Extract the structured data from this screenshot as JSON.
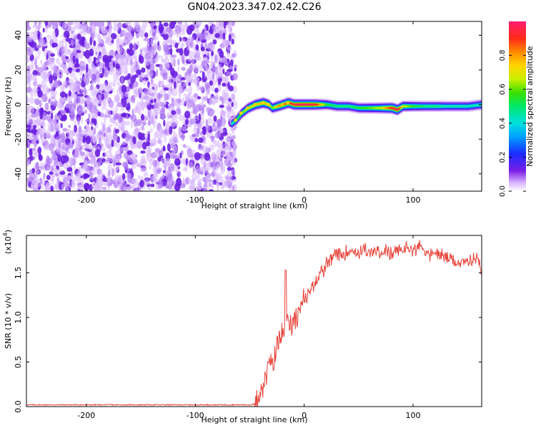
{
  "title": "GN04.2023.347.02.42.C26",
  "colors": {
    "snr_line": "#e8433a",
    "noise": "#7a2ef0",
    "axis": "#000000"
  },
  "colorbar": {
    "label": "Normalized spectral amplitude",
    "ticks": [
      "0.0",
      "0.2",
      "0.4",
      "0.6",
      "0.8"
    ],
    "tick_values": [
      0.0,
      0.2,
      0.4,
      0.6,
      0.8
    ],
    "range": [
      0,
      1
    ]
  },
  "chart_data": [
    {
      "type": "heatmap",
      "title": "GN04.2023.347.02.42.C26",
      "xlabel": "Height of straight line (km)",
      "ylabel": "Frequency (Hz)",
      "xlim": [
        -255,
        163
      ],
      "ylim": [
        -50,
        48
      ],
      "x_ticks": [
        "-200",
        "-100",
        "0",
        "100"
      ],
      "x_tick_values": [
        -200,
        -100,
        0,
        100
      ],
      "y_ticks": [
        "-40",
        "-20",
        "0",
        "20",
        "40"
      ],
      "y_tick_values": [
        -40,
        -20,
        0,
        20,
        40
      ],
      "noise_region_x": [
        -255,
        -63
      ],
      "ridge": {
        "x": [
          -67,
          -63,
          -58,
          -52,
          -45,
          -38,
          -33,
          -30,
          -25,
          -20,
          -15,
          -10,
          -5,
          0,
          10,
          20,
          30,
          40,
          50,
          60,
          70,
          80,
          85,
          90,
          100,
          110,
          120,
          130,
          140,
          150,
          163
        ],
        "frequency": [
          -11,
          -9,
          -5,
          -2,
          0,
          1,
          0,
          -2,
          -1,
          0,
          1,
          0,
          0,
          0,
          0,
          0,
          -1,
          -1,
          -2,
          -2,
          -2,
          -2,
          -3,
          -1,
          -1,
          -1,
          -1,
          -1,
          -1,
          -1,
          0
        ],
        "amplitude": [
          0.45,
          0.5,
          0.6,
          0.7,
          0.75,
          0.8,
          0.7,
          0.6,
          0.8,
          0.85,
          0.9,
          0.95,
          1.0,
          1.0,
          0.95,
          0.55,
          0.5,
          0.5,
          0.55,
          0.6,
          0.7,
          0.95,
          1.0,
          0.7,
          0.55,
          0.5,
          0.5,
          0.45,
          0.45,
          0.45,
          0.45
        ]
      }
    },
    {
      "type": "line",
      "xlabel": "Height of straight line (km)",
      "ylabel": "SNR (10 * v/v)",
      "yunit": "(x10",
      "yunit_exp": "4",
      "yunit_close": ")",
      "xlim": [
        -255,
        163
      ],
      "ylim": [
        0,
        1.92
      ],
      "x_ticks": [
        "-200",
        "-100",
        "0",
        "100"
      ],
      "x_tick_values": [
        -200,
        -100,
        0,
        100
      ],
      "y_ticks": [
        "0.0",
        "0.5",
        "1.0",
        "1.5"
      ],
      "y_tick_values": [
        0.0,
        0.5,
        1.0,
        1.5
      ],
      "series": [
        {
          "x": [
            -255,
            -200,
            -150,
            -100,
            -60,
            -50,
            -45,
            -42,
            -40,
            -38,
            -36,
            -33,
            -30,
            -28,
            -25,
            -22,
            -20,
            -17,
            -15,
            -12,
            -10,
            -7,
            -5,
            -2,
            0,
            3,
            5,
            8,
            10,
            13,
            15,
            18,
            20,
            23,
            25,
            28,
            30,
            35,
            40,
            45,
            50,
            55,
            60,
            65,
            70,
            75,
            80,
            85,
            90,
            95,
            100,
            105,
            110,
            115,
            120,
            125,
            130,
            135,
            140,
            145,
            150,
            155,
            160,
            163
          ],
          "y": [
            0.02,
            0.02,
            0.02,
            0.02,
            0.02,
            0.02,
            0.03,
            0.1,
            0.22,
            0.2,
            0.35,
            0.4,
            0.55,
            0.5,
            0.7,
            0.75,
            0.85,
            0.8,
            1.0,
            0.9,
            1.0,
            1.0,
            1.1,
            1.1,
            1.2,
            1.25,
            1.3,
            1.35,
            1.4,
            1.45,
            1.55,
            1.5,
            1.6,
            1.6,
            1.65,
            1.7,
            1.7,
            1.7,
            1.75,
            1.75,
            1.72,
            1.78,
            1.7,
            1.75,
            1.72,
            1.75,
            1.7,
            1.75,
            1.75,
            1.8,
            1.75,
            1.8,
            1.78,
            1.7,
            1.72,
            1.7,
            1.68,
            1.65,
            1.62,
            1.6,
            1.62,
            1.65,
            1.68,
            1.5
          ]
        }
      ]
    }
  ]
}
